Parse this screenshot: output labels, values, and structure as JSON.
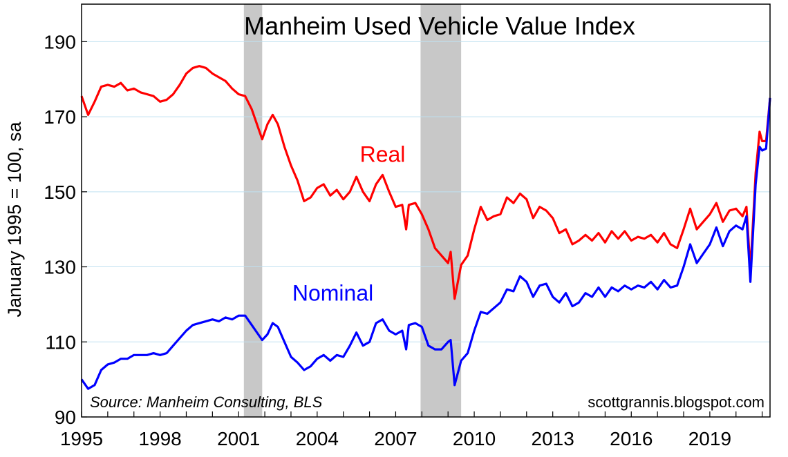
{
  "chart_data": {
    "type": "line",
    "title": "Manheim Used Vehicle Value Index",
    "ylabel": "January 1995 = 100, sa",
    "xlabel": "",
    "xlim": [
      1995.0,
      2021.3
    ],
    "ylim": [
      90,
      200
    ],
    "y_ticks": [
      90,
      110,
      130,
      150,
      170,
      190
    ],
    "x_ticks": [
      1995,
      1998,
      2001,
      2004,
      2007,
      2010,
      2013,
      2016,
      2019
    ],
    "x_tick_labels": [
      "1995",
      "1998",
      "2001",
      "2004",
      "2007",
      "2010",
      "2013",
      "2016",
      "2019"
    ],
    "y_tick_labels": [
      "90",
      "110",
      "130",
      "150",
      "170",
      "190"
    ],
    "grid": "horizontal",
    "recessions": [
      {
        "start": 2001.2,
        "end": 2001.9
      },
      {
        "start": 2007.95,
        "end": 2009.5
      }
    ],
    "annotations": {
      "source": "Source: Manheim Consulting, BLS",
      "credit": "scottgrannis.blogspot.com"
    },
    "series": [
      {
        "name": "Real",
        "color": "#ff0000",
        "label_at": [
          2006.5,
          158
        ],
        "points": [
          [
            1995.0,
            175.5
          ],
          [
            1995.25,
            170.5
          ],
          [
            1995.5,
            174
          ],
          [
            1995.75,
            178
          ],
          [
            1996.0,
            178.5
          ],
          [
            1996.25,
            178
          ],
          [
            1996.5,
            179
          ],
          [
            1996.75,
            177
          ],
          [
            1997.0,
            177.5
          ],
          [
            1997.25,
            176.5
          ],
          [
            1997.5,
            176
          ],
          [
            1997.75,
            175.5
          ],
          [
            1998.0,
            174
          ],
          [
            1998.25,
            174.5
          ],
          [
            1998.5,
            176
          ],
          [
            1998.75,
            178.5
          ],
          [
            1999.0,
            181.5
          ],
          [
            1999.25,
            183
          ],
          [
            1999.5,
            183.5
          ],
          [
            1999.75,
            183
          ],
          [
            2000.0,
            181.5
          ],
          [
            2000.25,
            180.5
          ],
          [
            2000.5,
            179.5
          ],
          [
            2000.75,
            177.5
          ],
          [
            2001.0,
            176
          ],
          [
            2001.25,
            175.5
          ],
          [
            2001.5,
            172
          ],
          [
            2001.75,
            167
          ],
          [
            2001.9,
            164
          ],
          [
            2002.1,
            168
          ],
          [
            2002.3,
            170.5
          ],
          [
            2002.5,
            168
          ],
          [
            2002.75,
            162
          ],
          [
            2003.0,
            157
          ],
          [
            2003.25,
            153
          ],
          [
            2003.5,
            147.5
          ],
          [
            2003.75,
            148.5
          ],
          [
            2004.0,
            151
          ],
          [
            2004.25,
            152
          ],
          [
            2004.5,
            149
          ],
          [
            2004.75,
            150.5
          ],
          [
            2005.0,
            148
          ],
          [
            2005.25,
            150
          ],
          [
            2005.5,
            154
          ],
          [
            2005.75,
            150
          ],
          [
            2006.0,
            147.5
          ],
          [
            2006.25,
            152
          ],
          [
            2006.5,
            154.5
          ],
          [
            2006.75,
            150
          ],
          [
            2007.0,
            146
          ],
          [
            2007.25,
            146.5
          ],
          [
            2007.4,
            140
          ],
          [
            2007.5,
            146.5
          ],
          [
            2007.75,
            147
          ],
          [
            2008.0,
            144
          ],
          [
            2008.25,
            140
          ],
          [
            2008.5,
            135
          ],
          [
            2008.75,
            133
          ],
          [
            2009.0,
            131
          ],
          [
            2009.1,
            134
          ],
          [
            2009.25,
            121.5
          ],
          [
            2009.5,
            130.5
          ],
          [
            2009.75,
            133
          ],
          [
            2010.0,
            140
          ],
          [
            2010.25,
            146
          ],
          [
            2010.5,
            142.5
          ],
          [
            2010.75,
            143.5
          ],
          [
            2011.0,
            144
          ],
          [
            2011.25,
            148.5
          ],
          [
            2011.5,
            147
          ],
          [
            2011.75,
            149.5
          ],
          [
            2012.0,
            148
          ],
          [
            2012.25,
            143
          ],
          [
            2012.5,
            146
          ],
          [
            2012.75,
            145
          ],
          [
            2013.0,
            143
          ],
          [
            2013.25,
            139
          ],
          [
            2013.5,
            140
          ],
          [
            2013.75,
            136
          ],
          [
            2014.0,
            137
          ],
          [
            2014.25,
            138.5
          ],
          [
            2014.5,
            137
          ],
          [
            2014.75,
            139
          ],
          [
            2015.0,
            136.5
          ],
          [
            2015.25,
            139.5
          ],
          [
            2015.5,
            137.5
          ],
          [
            2015.75,
            139.5
          ],
          [
            2016.0,
            137
          ],
          [
            2016.25,
            138
          ],
          [
            2016.5,
            137.5
          ],
          [
            2016.75,
            138.5
          ],
          [
            2017.0,
            136.5
          ],
          [
            2017.25,
            139
          ],
          [
            2017.5,
            136
          ],
          [
            2017.75,
            135
          ],
          [
            2018.0,
            140
          ],
          [
            2018.25,
            145.5
          ],
          [
            2018.5,
            140
          ],
          [
            2018.75,
            142
          ],
          [
            2019.0,
            144
          ],
          [
            2019.25,
            147
          ],
          [
            2019.5,
            142
          ],
          [
            2019.75,
            145
          ],
          [
            2020.0,
            145.5
          ],
          [
            2020.25,
            143.5
          ],
          [
            2020.4,
            146
          ],
          [
            2020.55,
            129
          ],
          [
            2020.75,
            155
          ],
          [
            2020.9,
            166
          ],
          [
            2021.0,
            163.5
          ],
          [
            2021.15,
            163.5
          ],
          [
            2021.3,
            175
          ]
        ]
      },
      {
        "name": "Nominal",
        "color": "#0000ff",
        "label_at": [
          2004.6,
          121
        ],
        "points": [
          [
            1995.0,
            100
          ],
          [
            1995.25,
            97.5
          ],
          [
            1995.5,
            98.5
          ],
          [
            1995.75,
            102.5
          ],
          [
            1996.0,
            104
          ],
          [
            1996.25,
            104.5
          ],
          [
            1996.5,
            105.5
          ],
          [
            1996.75,
            105.5
          ],
          [
            1997.0,
            106.5
          ],
          [
            1997.25,
            106.5
          ],
          [
            1997.5,
            106.5
          ],
          [
            1997.75,
            107
          ],
          [
            1998.0,
            106.5
          ],
          [
            1998.25,
            107
          ],
          [
            1998.5,
            109
          ],
          [
            1998.75,
            111
          ],
          [
            1999.0,
            113
          ],
          [
            1999.25,
            114.5
          ],
          [
            1999.5,
            115
          ],
          [
            1999.75,
            115.5
          ],
          [
            2000.0,
            116
          ],
          [
            2000.25,
            115.5
          ],
          [
            2000.5,
            116.5
          ],
          [
            2000.75,
            116
          ],
          [
            2001.0,
            117
          ],
          [
            2001.25,
            117
          ],
          [
            2001.5,
            114.5
          ],
          [
            2001.75,
            112
          ],
          [
            2001.9,
            110.5
          ],
          [
            2002.1,
            112
          ],
          [
            2002.3,
            115
          ],
          [
            2002.5,
            114
          ],
          [
            2002.75,
            110
          ],
          [
            2003.0,
            106
          ],
          [
            2003.25,
            104.5
          ],
          [
            2003.5,
            102.5
          ],
          [
            2003.75,
            103.5
          ],
          [
            2004.0,
            105.5
          ],
          [
            2004.25,
            106.5
          ],
          [
            2004.5,
            105
          ],
          [
            2004.75,
            106.5
          ],
          [
            2005.0,
            106
          ],
          [
            2005.25,
            109
          ],
          [
            2005.5,
            112.5
          ],
          [
            2005.75,
            109
          ],
          [
            2006.0,
            110
          ],
          [
            2006.25,
            115
          ],
          [
            2006.5,
            116
          ],
          [
            2006.75,
            113
          ],
          [
            2007.0,
            112
          ],
          [
            2007.25,
            113
          ],
          [
            2007.4,
            108
          ],
          [
            2007.5,
            114.5
          ],
          [
            2007.75,
            115
          ],
          [
            2008.0,
            114
          ],
          [
            2008.25,
            109
          ],
          [
            2008.5,
            108
          ],
          [
            2008.75,
            108
          ],
          [
            2009.0,
            110
          ],
          [
            2009.1,
            110.5
          ],
          [
            2009.25,
            98.5
          ],
          [
            2009.5,
            105
          ],
          [
            2009.75,
            107
          ],
          [
            2010.0,
            113
          ],
          [
            2010.25,
            118
          ],
          [
            2010.5,
            117.5
          ],
          [
            2010.75,
            119
          ],
          [
            2011.0,
            120.5
          ],
          [
            2011.25,
            124
          ],
          [
            2011.5,
            123.5
          ],
          [
            2011.75,
            127.5
          ],
          [
            2012.0,
            126
          ],
          [
            2012.25,
            122
          ],
          [
            2012.5,
            125
          ],
          [
            2012.75,
            125.5
          ],
          [
            2013.0,
            122
          ],
          [
            2013.25,
            120.5
          ],
          [
            2013.5,
            123
          ],
          [
            2013.75,
            119.5
          ],
          [
            2014.0,
            120.5
          ],
          [
            2014.25,
            123
          ],
          [
            2014.5,
            122
          ],
          [
            2014.75,
            124.5
          ],
          [
            2015.0,
            122
          ],
          [
            2015.25,
            124.5
          ],
          [
            2015.5,
            123.5
          ],
          [
            2015.75,
            125
          ],
          [
            2016.0,
            124
          ],
          [
            2016.25,
            125
          ],
          [
            2016.5,
            124.5
          ],
          [
            2016.75,
            126
          ],
          [
            2017.0,
            124
          ],
          [
            2017.25,
            126.5
          ],
          [
            2017.5,
            124.5
          ],
          [
            2017.75,
            125
          ],
          [
            2018.0,
            130
          ],
          [
            2018.25,
            136
          ],
          [
            2018.5,
            131
          ],
          [
            2018.75,
            133.5
          ],
          [
            2019.0,
            136
          ],
          [
            2019.25,
            140.5
          ],
          [
            2019.5,
            135.5
          ],
          [
            2019.75,
            139.5
          ],
          [
            2020.0,
            141
          ],
          [
            2020.25,
            140
          ],
          [
            2020.4,
            143.5
          ],
          [
            2020.55,
            126
          ],
          [
            2020.75,
            152
          ],
          [
            2020.9,
            162
          ],
          [
            2021.0,
            161
          ],
          [
            2021.15,
            161.5
          ],
          [
            2021.3,
            175
          ]
        ]
      }
    ]
  }
}
